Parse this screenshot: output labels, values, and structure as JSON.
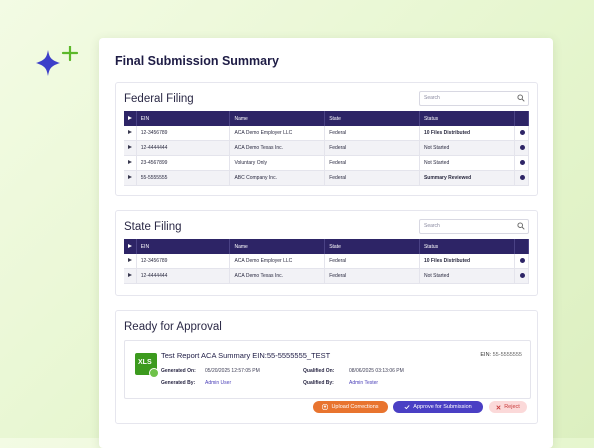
{
  "page_title": "Final Submission Summary",
  "federal": {
    "title": "Federal Filing",
    "search_placeholder": "Search",
    "columns": [
      "EIN",
      "Name",
      "State",
      "Status"
    ],
    "rows": [
      {
        "ein": "12-3456789",
        "name": "ACA Demo Employer LLC",
        "state": "Federal",
        "status": "10 Files Distributed"
      },
      {
        "ein": "12-4444444",
        "name": "ACA Demo Texas Inc.",
        "state": "Federal",
        "status": "Not Started"
      },
      {
        "ein": "23-4567899",
        "name": "Voluntary Only",
        "state": "Federal",
        "status": "Not Started"
      },
      {
        "ein": "55-5555555",
        "name": "ABC Company Inc.",
        "state": "Federal",
        "status": "Summary Reviewed"
      }
    ]
  },
  "state": {
    "title": "State Filing",
    "search_placeholder": "Search",
    "columns": [
      "EIN",
      "Name",
      "State",
      "Status"
    ],
    "rows": [
      {
        "ein": "12-3456789",
        "name": "ACA Demo Employer LLC",
        "state": "Federal",
        "status": "10 Files Distributed"
      },
      {
        "ein": "12-4444444",
        "name": "ACA Demo Texas Inc.",
        "state": "Federal",
        "status": "Not Started"
      }
    ]
  },
  "approval": {
    "title": "Ready for Approval",
    "file_badge": "XLS",
    "report_title": "Test Report ACA Summary EIN:55-5555555_TEST",
    "ein_label": "EIN:",
    "ein_value": "55-5555555",
    "generated_on_label": "Generated On:",
    "generated_on_value": "05/20/2025 12:57:05 PM",
    "generated_by_label": "Generated By:",
    "generated_by_value": "Admin User",
    "qualified_on_label": "Qualified On:",
    "qualified_on_value": "08/06/2025 03:13:06 PM",
    "qualified_by_label": "Qualified By:",
    "qualified_by_value": "Admin Tester"
  },
  "buttons": {
    "upload": "Upload Corrections",
    "approve": "Approve for Submission",
    "reject": "Reject"
  },
  "colors": {
    "header_bg": "#2d2466",
    "accent_green": "#52a31b",
    "upload": "#e8742f",
    "approve": "#4a3fc4",
    "reject_bg": "#fbd9d9"
  },
  "icons": {
    "sparkle": "sparkle-icon",
    "search": "search-icon",
    "expand": "expand-row-icon",
    "action": "row-action-icon",
    "upload": "upload-icon",
    "approve": "check-icon",
    "reject": "close-icon"
  }
}
